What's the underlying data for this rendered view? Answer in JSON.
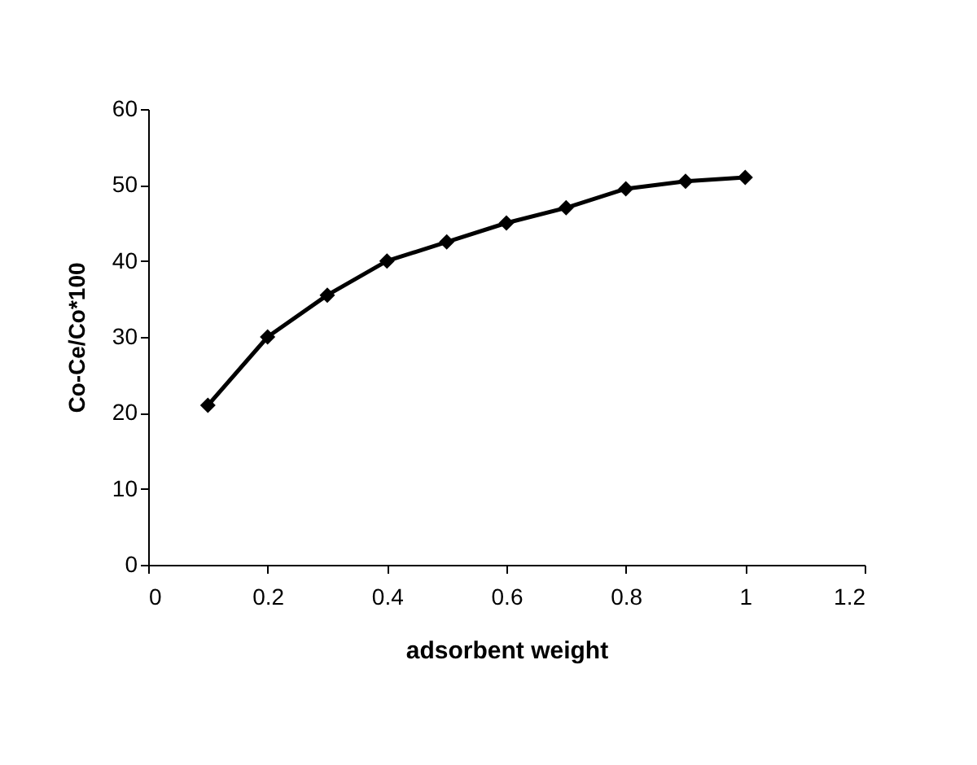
{
  "chart_data": {
    "type": "line",
    "xlabel": "adsorbent weight",
    "ylabel": "Co-Ce/Co*100",
    "x": [
      0.1,
      0.2,
      0.3,
      0.4,
      0.5,
      0.6,
      0.7,
      0.8,
      0.9,
      1.0
    ],
    "series": [
      {
        "color": "#000000",
        "values": [
          21,
          30,
          35.5,
          40,
          42.5,
          45,
          47,
          49.5,
          50.5,
          51
        ]
      }
    ],
    "xlim": [
      0,
      1.2
    ],
    "xticks": [
      0,
      0.2,
      0.4,
      0.6,
      0.8,
      1,
      1.2
    ],
    "ylim": [
      0,
      60
    ],
    "yticks": [
      0,
      10,
      20,
      30,
      40,
      50,
      60
    ],
    "grid": false,
    "marker": "diamond",
    "line_style": "solid"
  }
}
